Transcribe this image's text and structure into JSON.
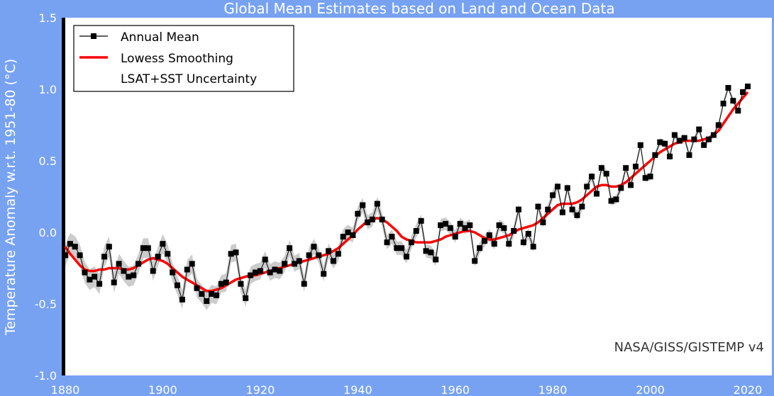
{
  "chart_data": {
    "type": "line",
    "title": "Global Mean Estimates based on Land and Ocean Data",
    "ylabel": "Temperature Anomaly w.r.t. 1951-80 (°C)",
    "xlabel": "",
    "xlim": [
      1880,
      2020
    ],
    "ylim": [
      -1.0,
      1.5
    ],
    "xticks": [
      1880,
      1900,
      1920,
      1940,
      1960,
      1980,
      2000,
      2020
    ],
    "yticks": [
      -1.0,
      -0.5,
      0.0,
      0.5,
      1.0,
      1.5
    ],
    "ytick_labels": [
      "-1.0",
      "-0.5",
      "0.0",
      "0.5",
      "1.0",
      "1.5"
    ],
    "grid": false,
    "legend_position": "top-left",
    "credit": "NASA/GISS/GISTEMP v4",
    "x": [
      1880,
      1881,
      1882,
      1883,
      1884,
      1885,
      1886,
      1887,
      1888,
      1889,
      1890,
      1891,
      1892,
      1893,
      1894,
      1895,
      1896,
      1897,
      1898,
      1899,
      1900,
      1901,
      1902,
      1903,
      1904,
      1905,
      1906,
      1907,
      1908,
      1909,
      1910,
      1911,
      1912,
      1913,
      1914,
      1915,
      1916,
      1917,
      1918,
      1919,
      1920,
      1921,
      1922,
      1923,
      1924,
      1925,
      1926,
      1927,
      1928,
      1929,
      1930,
      1931,
      1932,
      1933,
      1934,
      1935,
      1936,
      1937,
      1938,
      1939,
      1940,
      1941,
      1942,
      1943,
      1944,
      1945,
      1946,
      1947,
      1948,
      1949,
      1950,
      1951,
      1952,
      1953,
      1954,
      1955,
      1956,
      1957,
      1958,
      1959,
      1960,
      1961,
      1962,
      1963,
      1964,
      1965,
      1966,
      1967,
      1968,
      1969,
      1970,
      1971,
      1972,
      1973,
      1974,
      1975,
      1976,
      1977,
      1978,
      1979,
      1980,
      1981,
      1982,
      1983,
      1984,
      1985,
      1986,
      1987,
      1988,
      1989,
      1990,
      1991,
      1992,
      1993,
      1994,
      1995,
      1996,
      1997,
      1998,
      1999,
      2000,
      2001,
      2002,
      2003,
      2004,
      2005,
      2006,
      2007,
      2008,
      2009,
      2010,
      2011,
      2012,
      2013,
      2014,
      2015,
      2016,
      2017,
      2018,
      2019,
      2020
    ],
    "series": [
      {
        "name": "Annual Mean",
        "color": "#000000",
        "marker": "square",
        "values": [
          -0.16,
          -0.08,
          -0.1,
          -0.16,
          -0.28,
          -0.33,
          -0.31,
          -0.36,
          -0.17,
          -0.1,
          -0.35,
          -0.22,
          -0.27,
          -0.31,
          -0.3,
          -0.22,
          -0.11,
          -0.11,
          -0.27,
          -0.17,
          -0.08,
          -0.15,
          -0.28,
          -0.37,
          -0.47,
          -0.26,
          -0.22,
          -0.39,
          -0.43,
          -0.48,
          -0.43,
          -0.44,
          -0.36,
          -0.35,
          -0.15,
          -0.14,
          -0.36,
          -0.46,
          -0.3,
          -0.28,
          -0.27,
          -0.19,
          -0.28,
          -0.26,
          -0.27,
          -0.22,
          -0.11,
          -0.22,
          -0.2,
          -0.36,
          -0.16,
          -0.1,
          -0.16,
          -0.29,
          -0.13,
          -0.2,
          -0.15,
          -0.03,
          -0.0,
          -0.02,
          0.13,
          0.19,
          0.07,
          0.09,
          0.2,
          0.09,
          -0.07,
          -0.03,
          -0.11,
          -0.11,
          -0.17,
          -0.07,
          0.01,
          0.08,
          -0.13,
          -0.14,
          -0.19,
          0.05,
          0.06,
          0.03,
          -0.03,
          0.06,
          0.03,
          0.05,
          -0.2,
          -0.11,
          -0.06,
          -0.02,
          -0.08,
          0.05,
          0.03,
          -0.08,
          0.01,
          0.16,
          -0.07,
          -0.01,
          -0.1,
          0.18,
          0.07,
          0.16,
          0.26,
          0.32,
          0.14,
          0.31,
          0.16,
          0.12,
          0.18,
          0.32,
          0.39,
          0.27,
          0.45,
          0.41,
          0.22,
          0.23,
          0.31,
          0.45,
          0.33,
          0.46,
          0.61,
          0.38,
          0.39,
          0.54,
          0.63,
          0.62,
          0.53,
          0.68,
          0.64,
          0.66,
          0.54,
          0.65,
          0.72,
          0.61,
          0.65,
          0.68,
          0.75,
          0.9,
          1.01,
          0.92,
          0.85,
          0.98,
          1.02
        ]
      },
      {
        "name": "Lowess Smoothing",
        "color": "#ff0000",
        "values": [
          -0.1,
          -0.15,
          -0.19,
          -0.23,
          -0.26,
          -0.27,
          -0.27,
          -0.26,
          -0.26,
          -0.25,
          -0.25,
          -0.25,
          -0.26,
          -0.26,
          -0.25,
          -0.23,
          -0.21,
          -0.19,
          -0.18,
          -0.19,
          -0.2,
          -0.22,
          -0.25,
          -0.28,
          -0.31,
          -0.33,
          -0.35,
          -0.37,
          -0.39,
          -0.41,
          -0.41,
          -0.4,
          -0.39,
          -0.37,
          -0.35,
          -0.33,
          -0.32,
          -0.31,
          -0.3,
          -0.3,
          -0.29,
          -0.28,
          -0.27,
          -0.26,
          -0.25,
          -0.24,
          -0.23,
          -0.22,
          -0.21,
          -0.2,
          -0.19,
          -0.18,
          -0.17,
          -0.16,
          -0.15,
          -0.13,
          -0.11,
          -0.08,
          -0.05,
          -0.02,
          0.02,
          0.05,
          0.08,
          0.09,
          0.1,
          0.09,
          0.07,
          0.04,
          0.01,
          -0.03,
          -0.05,
          -0.06,
          -0.07,
          -0.07,
          -0.07,
          -0.07,
          -0.06,
          -0.05,
          -0.03,
          -0.02,
          -0.01,
          0.0,
          0.01,
          0.01,
          0.0,
          -0.02,
          -0.04,
          -0.05,
          -0.05,
          -0.04,
          -0.03,
          -0.02,
          0.0,
          0.02,
          0.03,
          0.04,
          0.05,
          0.07,
          0.1,
          0.13,
          0.16,
          0.19,
          0.2,
          0.2,
          0.2,
          0.21,
          0.23,
          0.26,
          0.29,
          0.32,
          0.33,
          0.33,
          0.32,
          0.32,
          0.33,
          0.35,
          0.38,
          0.41,
          0.44,
          0.47,
          0.5,
          0.53,
          0.56,
          0.58,
          0.6,
          0.62,
          0.63,
          0.64,
          0.64,
          0.64,
          0.64,
          0.65,
          0.66,
          0.68,
          0.71,
          0.76,
          0.81,
          0.86,
          0.9,
          0.94,
          0.98
        ]
      },
      {
        "name": "LSAT+SST Uncertainty",
        "color": "#cccccc",
        "band": true
      }
    ]
  }
}
